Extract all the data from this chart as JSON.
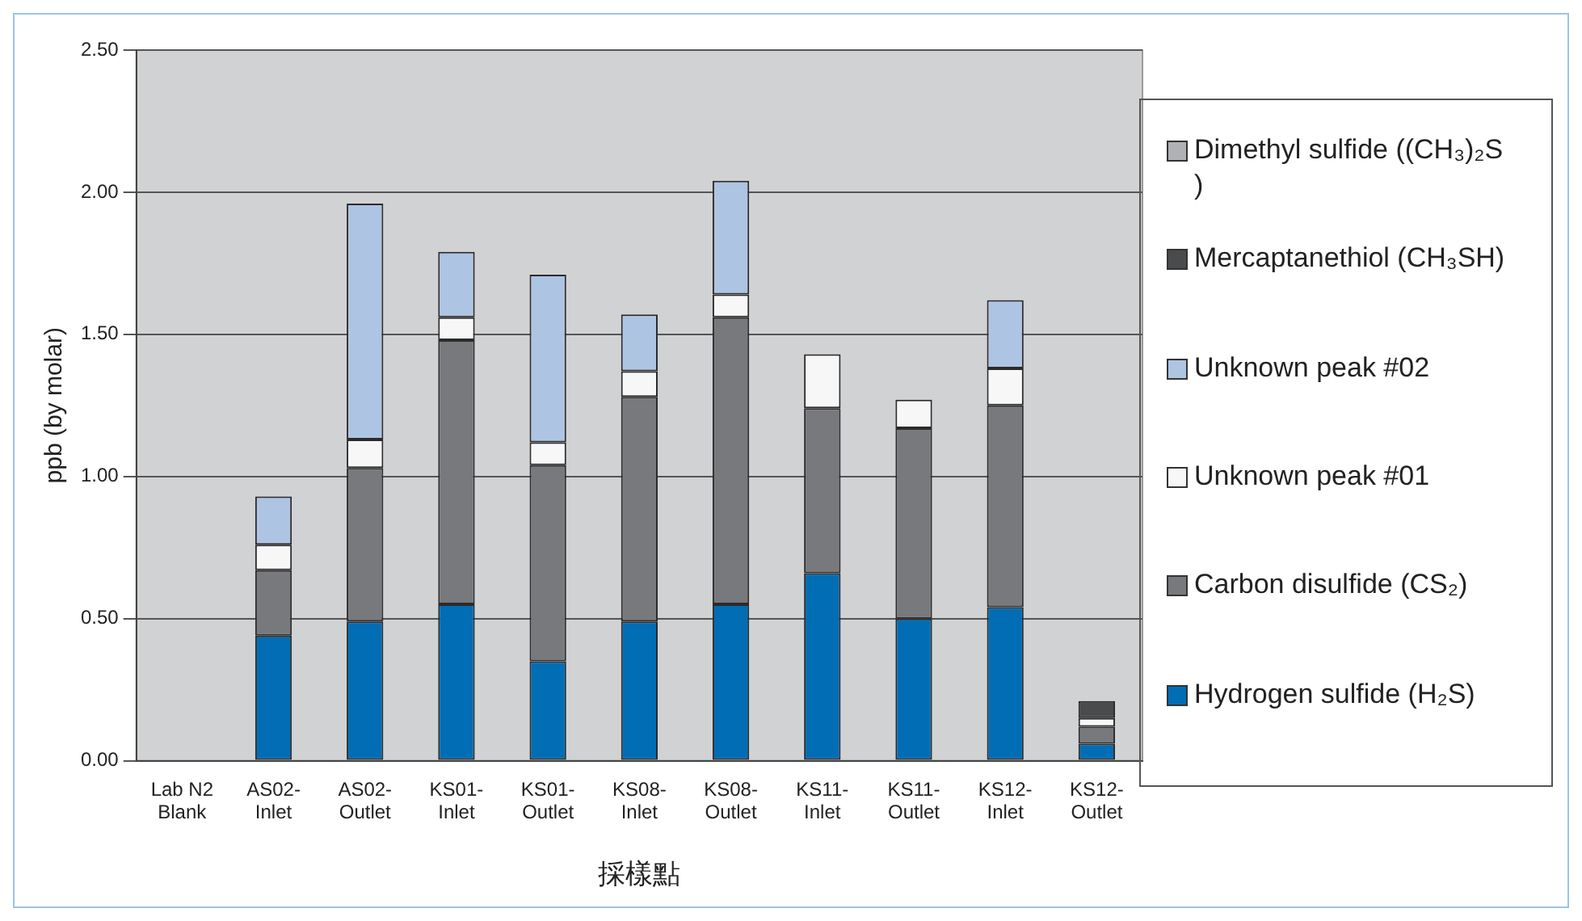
{
  "chart_data": {
    "type": "bar",
    "stacked": true,
    "xlabel": "採樣點",
    "ylabel": "ppb (by molar)",
    "categories": [
      "Lab N2 Blank",
      "AS02-Inlet",
      "AS02-Outlet",
      "KS01-Inlet",
      "KS01-Outlet",
      "KS08-Inlet",
      "KS08-Outlet",
      "KS11-Inlet",
      "KS11-Outlet",
      "KS12-Inlet",
      "KS12-Outlet"
    ],
    "series": [
      {
        "name": "Hydrogen sulfide (H₂S)",
        "color": "#006db5",
        "values": [
          0,
          0.44,
          0.49,
          0.55,
          0.35,
          0.49,
          0.55,
          0.66,
          0.5,
          0.54,
          0.06
        ]
      },
      {
        "name": "Carbon disulfide (CS₂)",
        "color": "#78797d",
        "values": [
          0,
          0.23,
          0.54,
          0.93,
          0.69,
          0.79,
          1.01,
          0.58,
          0.67,
          0.71,
          0.06
        ]
      },
      {
        "name": "Unknown peak #01",
        "color": "#f7f7f7",
        "values": [
          0,
          0.09,
          0.1,
          0.08,
          0.08,
          0.09,
          0.08,
          0.19,
          0.1,
          0.13,
          0.03
        ]
      },
      {
        "name": "Unknown peak #02",
        "color": "#aec4e3",
        "values": [
          0,
          0.17,
          0.83,
          0.23,
          0.59,
          0.2,
          0.4,
          0,
          0,
          0.24,
          0
        ]
      },
      {
        "name": "Mercaptanethiol (CH₃SH)",
        "color": "#4a4b4d",
        "values": [
          0,
          0,
          0,
          0,
          0,
          0,
          0,
          0,
          0,
          0,
          0.06
        ]
      },
      {
        "name": "Dimethyl sulfide ((CH₃)₂S )",
        "color": "#b0b1b4",
        "values": [
          0,
          0,
          0,
          0,
          0,
          0,
          0,
          0,
          0,
          0,
          0
        ]
      }
    ],
    "ylim": [
      0,
      2.5
    ],
    "yticks": [
      {
        "value": 0,
        "label": "0.00"
      },
      {
        "value": 0.5,
        "label": "0.50"
      },
      {
        "value": 1,
        "label": "1.00"
      },
      {
        "value": 1.5,
        "label": "1.50"
      },
      {
        "value": 2,
        "label": "2.00"
      },
      {
        "value": 2.5,
        "label": "2.50"
      }
    ],
    "grid": "y",
    "legend": "right"
  }
}
